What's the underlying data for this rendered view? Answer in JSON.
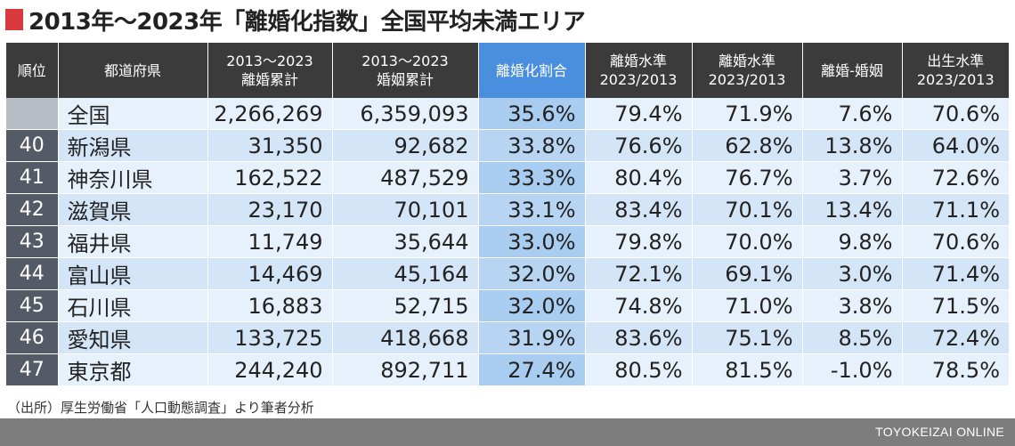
{
  "title": "2013年〜2023年「離婚化指数」全国平均未満エリア",
  "accent_color": "#d7393f",
  "highlight_color": "#4a8fde",
  "headers": [
    [
      "順位"
    ],
    [
      "都道府県"
    ],
    [
      "2013〜2023",
      "離婚累計"
    ],
    [
      "2013〜2023",
      "婚姻累計"
    ],
    [
      "離婚化割合"
    ],
    [
      "離婚水準",
      "2023/2013"
    ],
    [
      "離婚水準",
      "2023/2013"
    ],
    [
      "離婚-婚姻"
    ],
    [
      "出生水準",
      "2023/2013"
    ]
  ],
  "rows": [
    [
      "",
      "全国",
      "2,266,269",
      "6,359,093",
      "35.6%",
      "79.4%",
      "71.9%",
      "7.6%",
      "70.6%"
    ],
    [
      "40",
      "新潟県",
      "31,350",
      "92,682",
      "33.8%",
      "76.6%",
      "62.8%",
      "13.8%",
      "64.0%"
    ],
    [
      "41",
      "神奈川県",
      "162,522",
      "487,529",
      "33.3%",
      "80.4%",
      "76.7%",
      "3.7%",
      "72.6%"
    ],
    [
      "42",
      "滋賀県",
      "23,170",
      "70,101",
      "33.1%",
      "83.4%",
      "70.1%",
      "13.4%",
      "71.1%"
    ],
    [
      "43",
      "福井県",
      "11,749",
      "35,644",
      "33.0%",
      "79.8%",
      "70.0%",
      "9.8%",
      "70.6%"
    ],
    [
      "44",
      "富山県",
      "14,469",
      "45,164",
      "32.0%",
      "72.1%",
      "69.1%",
      "3.0%",
      "71.4%"
    ],
    [
      "45",
      "石川県",
      "16,883",
      "52,715",
      "32.0%",
      "74.8%",
      "71.0%",
      "3.8%",
      "71.5%"
    ],
    [
      "46",
      "愛知県",
      "133,725",
      "418,668",
      "31.9%",
      "83.6%",
      "75.1%",
      "8.5%",
      "72.4%"
    ],
    [
      "47",
      "東京都",
      "244,240",
      "892,711",
      "27.4%",
      "80.5%",
      "81.5%",
      "-1.0%",
      "78.5%"
    ]
  ],
  "source": "（出所）厚生労働省「人口動態調査」より筆者分析",
  "brand": "TOYOKEIZAI ONLINE",
  "chart_data": {
    "type": "table",
    "title": "2013年〜2023年「離婚化指数」全国平均未満エリア",
    "columns": [
      "順位",
      "都道府県",
      "2013〜2023 離婚累計",
      "2013〜2023 婚姻累計",
      "離婚化割合",
      "離婚水準 2023/2013",
      "離婚水準 2023/2013",
      "離婚-婚姻",
      "出生水準 2023/2013"
    ],
    "rows": [
      {
        "rank": null,
        "prefecture": "全国",
        "divorces": 2266269,
        "marriages": 6359093,
        "divorce_ratio": 35.6,
        "divorce_level": 79.4,
        "marriage_level": 71.9,
        "divorce_minus_marriage": 7.6,
        "birth_level": 70.6
      },
      {
        "rank": 40,
        "prefecture": "新潟県",
        "divorces": 31350,
        "marriages": 92682,
        "divorce_ratio": 33.8,
        "divorce_level": 76.6,
        "marriage_level": 62.8,
        "divorce_minus_marriage": 13.8,
        "birth_level": 64.0
      },
      {
        "rank": 41,
        "prefecture": "神奈川県",
        "divorces": 162522,
        "marriages": 487529,
        "divorce_ratio": 33.3,
        "divorce_level": 80.4,
        "marriage_level": 76.7,
        "divorce_minus_marriage": 3.7,
        "birth_level": 72.6
      },
      {
        "rank": 42,
        "prefecture": "滋賀県",
        "divorces": 23170,
        "marriages": 70101,
        "divorce_ratio": 33.1,
        "divorce_level": 83.4,
        "marriage_level": 70.1,
        "divorce_minus_marriage": 13.4,
        "birth_level": 71.1
      },
      {
        "rank": 43,
        "prefecture": "福井県",
        "divorces": 11749,
        "marriages": 35644,
        "divorce_ratio": 33.0,
        "divorce_level": 79.8,
        "marriage_level": 70.0,
        "divorce_minus_marriage": 9.8,
        "birth_level": 70.6
      },
      {
        "rank": 44,
        "prefecture": "富山県",
        "divorces": 14469,
        "marriages": 45164,
        "divorce_ratio": 32.0,
        "divorce_level": 72.1,
        "marriage_level": 69.1,
        "divorce_minus_marriage": 3.0,
        "birth_level": 71.4
      },
      {
        "rank": 45,
        "prefecture": "石川県",
        "divorces": 16883,
        "marriages": 52715,
        "divorce_ratio": 32.0,
        "divorce_level": 74.8,
        "marriage_level": 71.0,
        "divorce_minus_marriage": 3.8,
        "birth_level": 71.5
      },
      {
        "rank": 46,
        "prefecture": "愛知県",
        "divorces": 133725,
        "marriages": 418668,
        "divorce_ratio": 31.9,
        "divorce_level": 83.6,
        "marriage_level": 75.1,
        "divorce_minus_marriage": 8.5,
        "birth_level": 72.4
      },
      {
        "rank": 47,
        "prefecture": "東京都",
        "divorces": 244240,
        "marriages": 892711,
        "divorce_ratio": 27.4,
        "divorce_level": 80.5,
        "marriage_level": 81.5,
        "divorce_minus_marriage": -1.0,
        "birth_level": 78.5
      }
    ],
    "units": "%"
  }
}
